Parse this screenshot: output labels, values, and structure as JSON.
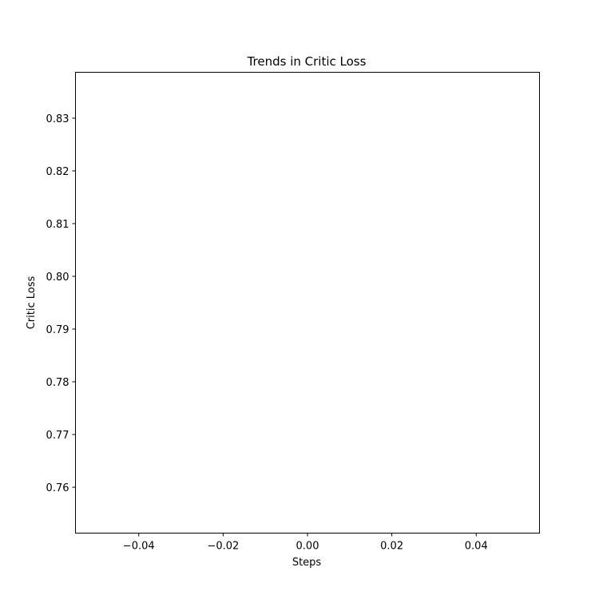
{
  "chart_data": {
    "type": "line",
    "title": "Trends in Critic Loss",
    "xlabel": "Steps",
    "ylabel": "Critic Loss",
    "xlim": [
      -0.055,
      0.055
    ],
    "ylim": [
      0.7513,
      0.8387
    ],
    "xticks": [
      -0.04,
      -0.02,
      0.0,
      0.02,
      0.04
    ],
    "xtick_labels": [
      "−0.04",
      "−0.02",
      "0.00",
      "0.02",
      "0.04"
    ],
    "yticks": [
      0.76,
      0.77,
      0.78,
      0.79,
      0.8,
      0.81,
      0.82,
      0.83
    ],
    "ytick_labels": [
      "0.76",
      "0.77",
      "0.78",
      "0.79",
      "0.80",
      "0.81",
      "0.82",
      "0.83"
    ],
    "grid": false,
    "series": [
      {
        "x": [],
        "y": []
      }
    ]
  }
}
